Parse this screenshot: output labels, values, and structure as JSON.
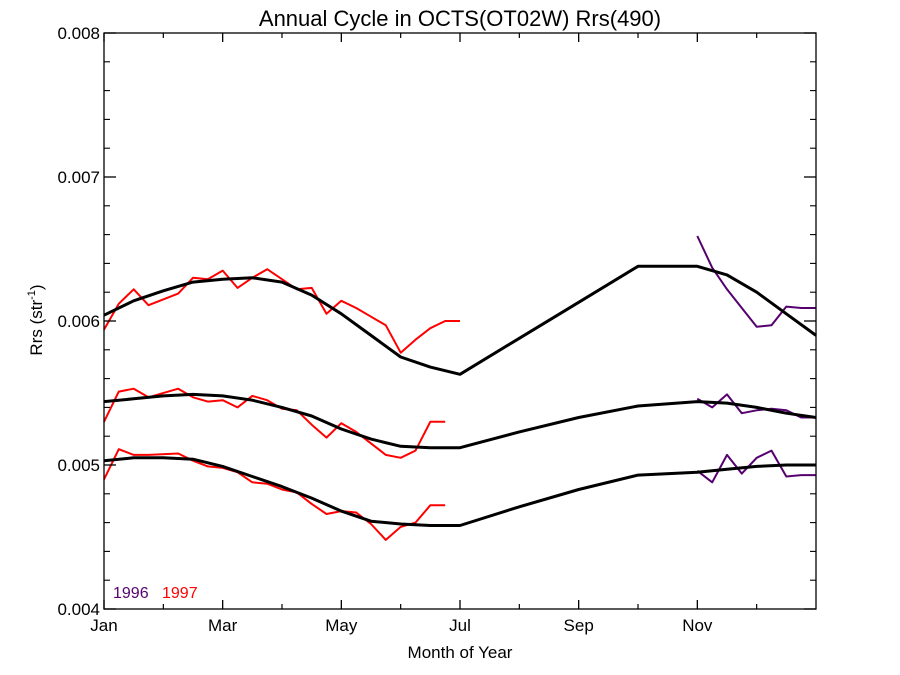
{
  "chart_data": {
    "type": "line",
    "title": "Annual Cycle in OCTS(OT02W) Rrs(490)",
    "xlabel": "Month of Year",
    "ylabel": {
      "main": "Rrs (str",
      "sup": "-1",
      "end": ")"
    },
    "xlim": [
      0,
      12
    ],
    "ylim": [
      0.004,
      0.008
    ],
    "x_ticks": [
      {
        "value": 0,
        "label": "Jan"
      },
      {
        "value": 2,
        "label": "Mar"
      },
      {
        "value": 4,
        "label": "May"
      },
      {
        "value": 6,
        "label": "Jul"
      },
      {
        "value": 8,
        "label": "Sep"
      },
      {
        "value": 10,
        "label": "Nov"
      }
    ],
    "y_ticks": [
      {
        "value": 0.004,
        "label": "0.004"
      },
      {
        "value": 0.005,
        "label": "0.005"
      },
      {
        "value": 0.006,
        "label": "0.006"
      },
      {
        "value": 0.007,
        "label": "0.007"
      },
      {
        "value": 0.008,
        "label": "0.008"
      }
    ],
    "grid": false,
    "legend": {
      "placement": "bottom-left",
      "entries": [
        {
          "label": "1996",
          "color": "#55006e"
        },
        {
          "label": "1997",
          "color": "#ff0000"
        }
      ]
    },
    "series": [
      {
        "name": "1997",
        "color": "#ff0000",
        "x": [
          0.0,
          0.25,
          0.5,
          0.75,
          1.25,
          1.5,
          1.75,
          2.0,
          2.25,
          2.5,
          2.75,
          3.0,
          3.25,
          3.5,
          3.75,
          4.0,
          4.25,
          4.5,
          4.75,
          5.0,
          5.25,
          5.5,
          5.75,
          6.0
        ],
        "y": [
          0.00594,
          0.00612,
          0.00622,
          0.00611,
          0.00619,
          0.0063,
          0.00629,
          0.00635,
          0.00623,
          0.0063,
          0.00636,
          0.00629,
          0.00622,
          0.00623,
          0.00605,
          0.00614,
          0.00609,
          0.00603,
          0.00597,
          0.00578,
          0.00587,
          0.00595,
          0.006,
          0.006
        ]
      },
      {
        "name": "1997",
        "color": "#ff0000",
        "x": [
          0.0,
          0.25,
          0.5,
          0.75,
          1.25,
          1.5,
          1.75,
          2.0,
          2.25,
          2.5,
          2.75,
          3.0,
          3.25,
          3.5,
          3.75,
          4.0,
          4.25,
          4.5,
          4.75,
          5.0,
          5.25,
          5.5,
          5.75
        ],
        "y": [
          0.0053,
          0.00551,
          0.00553,
          0.00547,
          0.00553,
          0.00547,
          0.00544,
          0.00545,
          0.0054,
          0.00548,
          0.00545,
          0.00539,
          0.00538,
          0.00528,
          0.00519,
          0.00529,
          0.00523,
          0.00515,
          0.00507,
          0.00505,
          0.0051,
          0.0053,
          0.0053
        ]
      },
      {
        "name": "1997",
        "color": "#ff0000",
        "x": [
          0.0,
          0.25,
          0.5,
          0.75,
          1.25,
          1.5,
          1.75,
          2.0,
          2.25,
          2.5,
          2.75,
          3.0,
          3.25,
          3.5,
          3.75,
          4.0,
          4.25,
          4.5,
          4.75,
          5.0,
          5.25,
          5.5,
          5.75
        ],
        "y": [
          0.0049,
          0.00511,
          0.00507,
          0.00507,
          0.00508,
          0.00503,
          0.00499,
          0.00498,
          0.00495,
          0.00488,
          0.00487,
          0.00483,
          0.00481,
          0.00473,
          0.00466,
          0.00468,
          0.00467,
          0.00459,
          0.00448,
          0.00457,
          0.0046,
          0.00472,
          0.00472
        ]
      },
      {
        "name": "1996",
        "color": "#55006e",
        "x": [
          10.0,
          10.25,
          10.5,
          10.75,
          11.0,
          11.25,
          11.5,
          11.75,
          12.0
        ],
        "y": [
          0.00659,
          0.00637,
          0.00622,
          0.00609,
          0.00596,
          0.00597,
          0.0061,
          0.00609,
          0.00609
        ]
      },
      {
        "name": "1996",
        "color": "#55006e",
        "x": [
          10.0,
          10.25,
          10.5,
          10.75,
          11.0,
          11.25,
          11.5,
          11.75,
          12.0
        ],
        "y": [
          0.00546,
          0.0054,
          0.00549,
          0.00536,
          0.00538,
          0.00539,
          0.00538,
          0.00533,
          0.00533
        ]
      },
      {
        "name": "1996",
        "color": "#55006e",
        "x": [
          10.0,
          10.25,
          10.5,
          10.75,
          11.0,
          11.25,
          11.5,
          11.75,
          12.0
        ],
        "y": [
          0.00496,
          0.00488,
          0.00507,
          0.00494,
          0.00505,
          0.0051,
          0.00492,
          0.00493,
          0.00493
        ]
      },
      {
        "name": "",
        "color": "#000000",
        "x": [
          0.0,
          0.5,
          1.0,
          1.5,
          2.0,
          2.5,
          3.0,
          3.5,
          4.0,
          4.5,
          5.0,
          5.5,
          6.0,
          7.0,
          8.0,
          9.0,
          10.0,
          10.5,
          11.0,
          11.5,
          12.0
        ],
        "y": [
          0.00604,
          0.00614,
          0.00621,
          0.00627,
          0.00629,
          0.0063,
          0.00627,
          0.00618,
          0.00605,
          0.0059,
          0.00575,
          0.00568,
          0.00563,
          0.00588,
          0.00613,
          0.00638,
          0.00638,
          0.00632,
          0.0062,
          0.00605,
          0.0059
        ]
      },
      {
        "name": "",
        "color": "#000000",
        "x": [
          0.0,
          0.5,
          1.0,
          1.5,
          2.0,
          2.5,
          3.0,
          3.5,
          4.0,
          4.5,
          5.0,
          5.5,
          6.0,
          7.0,
          8.0,
          9.0,
          10.0,
          10.5,
          11.0,
          11.5,
          12.0
        ],
        "y": [
          0.00544,
          0.00546,
          0.00548,
          0.00549,
          0.00548,
          0.00545,
          0.0054,
          0.00534,
          0.00525,
          0.00518,
          0.00513,
          0.00512,
          0.00512,
          0.00523,
          0.00533,
          0.00541,
          0.00544,
          0.00543,
          0.0054,
          0.00536,
          0.00533
        ]
      },
      {
        "name": "",
        "color": "#000000",
        "x": [
          0.0,
          0.5,
          1.0,
          1.5,
          2.0,
          2.5,
          3.0,
          3.5,
          4.0,
          4.5,
          5.0,
          5.5,
          6.0,
          7.0,
          8.0,
          9.0,
          10.0,
          10.5,
          11.0,
          11.5,
          12.0
        ],
        "y": [
          0.00503,
          0.00505,
          0.00505,
          0.00504,
          0.00499,
          0.00492,
          0.00485,
          0.00477,
          0.00468,
          0.00461,
          0.00459,
          0.00458,
          0.00458,
          0.00471,
          0.00483,
          0.00493,
          0.00495,
          0.00497,
          0.00499,
          0.005,
          0.005
        ]
      }
    ]
  }
}
